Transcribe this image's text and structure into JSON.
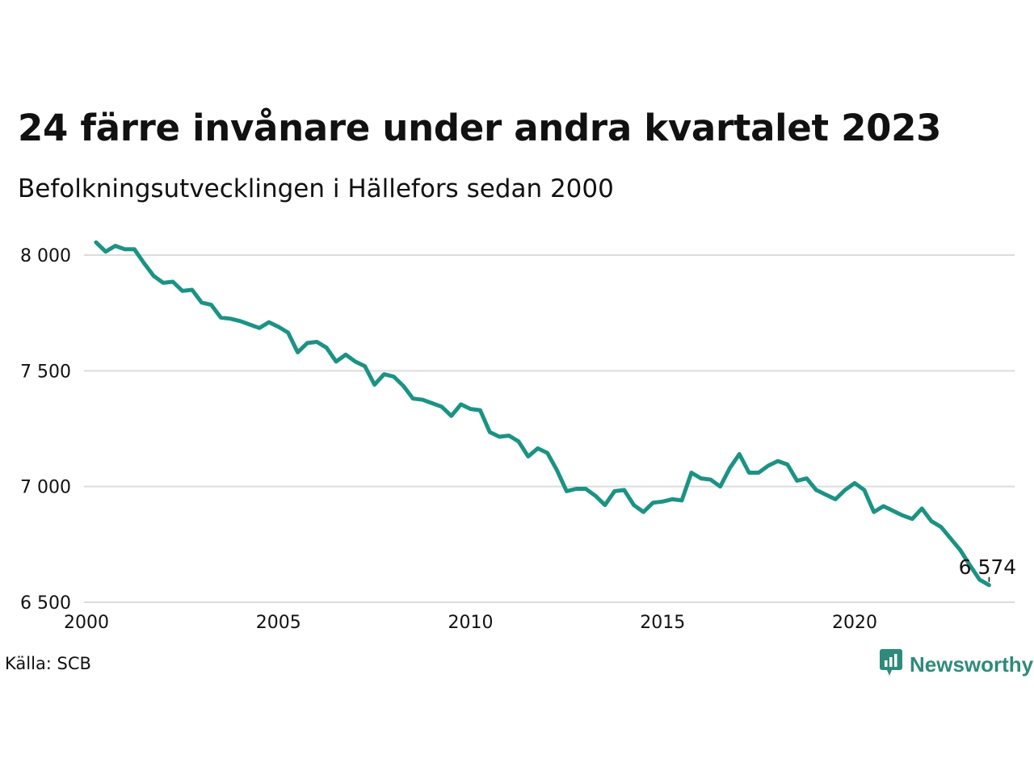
{
  "header": {
    "title": "24 färre invånare under andra kvartalet 2023",
    "subtitle": "Befolkningsutvecklingen i Hällefors sedan 2000"
  },
  "footer": {
    "source": "Källa: SCB",
    "brand": "Newsworthy",
    "brand_icon": "newsworthy-logo-icon"
  },
  "colors": {
    "line": "#1b9384",
    "grid": "#dcdcdc",
    "brand": "#2e8a7c"
  },
  "chart_data": {
    "type": "line",
    "title": "24 färre invånare under andra kvartalet 2023",
    "subtitle": "Befolkningsutvecklingen i Hällefors sedan 2000",
    "xlabel": "",
    "ylabel": "",
    "x_ticks": [
      2000,
      2005,
      2010,
      2015,
      2020
    ],
    "x_tick_labels": [
      "2000",
      "2005",
      "2010",
      "2015",
      "2020"
    ],
    "y_ticks": [
      6500,
      7000,
      7500,
      8000
    ],
    "y_tick_labels": [
      "6 500",
      "7 000",
      "7 500",
      "8 000"
    ],
    "xlim": [
      2000,
      2024
    ],
    "ylim": [
      6500,
      8100
    ],
    "grid": true,
    "end_label": "6 574",
    "series": [
      {
        "values": [
          {
            "x": 2000.25,
            "y": 8055
          },
          {
            "x": 2000.5,
            "y": 8015
          },
          {
            "x": 2000.75,
            "y": 8040
          },
          {
            "x": 2001.0,
            "y": 8025
          },
          {
            "x": 2001.25,
            "y": 8025
          },
          {
            "x": 2001.5,
            "y": 7965
          },
          {
            "x": 2001.75,
            "y": 7910
          },
          {
            "x": 2002.0,
            "y": 7880
          },
          {
            "x": 2002.25,
            "y": 7885
          },
          {
            "x": 2002.5,
            "y": 7845
          },
          {
            "x": 2002.75,
            "y": 7850
          },
          {
            "x": 2003.0,
            "y": 7795
          },
          {
            "x": 2003.25,
            "y": 7785
          },
          {
            "x": 2003.5,
            "y": 7730
          },
          {
            "x": 2003.75,
            "y": 7725
          },
          {
            "x": 2004.0,
            "y": 7715
          },
          {
            "x": 2004.25,
            "y": 7700
          },
          {
            "x": 2004.5,
            "y": 7685
          },
          {
            "x": 2004.75,
            "y": 7710
          },
          {
            "x": 2005.0,
            "y": 7690
          },
          {
            "x": 2005.25,
            "y": 7665
          },
          {
            "x": 2005.5,
            "y": 7580
          },
          {
            "x": 2005.75,
            "y": 7620
          },
          {
            "x": 2006.0,
            "y": 7625
          },
          {
            "x": 2006.25,
            "y": 7600
          },
          {
            "x": 2006.5,
            "y": 7540
          },
          {
            "x": 2006.75,
            "y": 7570
          },
          {
            "x": 2007.0,
            "y": 7540
          },
          {
            "x": 2007.25,
            "y": 7520
          },
          {
            "x": 2007.5,
            "y": 7440
          },
          {
            "x": 2007.75,
            "y": 7485
          },
          {
            "x": 2008.0,
            "y": 7475
          },
          {
            "x": 2008.25,
            "y": 7435
          },
          {
            "x": 2008.5,
            "y": 7380
          },
          {
            "x": 2008.75,
            "y": 7375
          },
          {
            "x": 2009.0,
            "y": 7360
          },
          {
            "x": 2009.25,
            "y": 7345
          },
          {
            "x": 2009.5,
            "y": 7305
          },
          {
            "x": 2009.75,
            "y": 7355
          },
          {
            "x": 2010.0,
            "y": 7335
          },
          {
            "x": 2010.25,
            "y": 7330
          },
          {
            "x": 2010.5,
            "y": 7235
          },
          {
            "x": 2010.75,
            "y": 7215
          },
          {
            "x": 2011.0,
            "y": 7220
          },
          {
            "x": 2011.25,
            "y": 7195
          },
          {
            "x": 2011.5,
            "y": 7130
          },
          {
            "x": 2011.75,
            "y": 7165
          },
          {
            "x": 2012.0,
            "y": 7145
          },
          {
            "x": 2012.25,
            "y": 7070
          },
          {
            "x": 2012.5,
            "y": 6980
          },
          {
            "x": 2012.75,
            "y": 6990
          },
          {
            "x": 2013.0,
            "y": 6990
          },
          {
            "x": 2013.25,
            "y": 6960
          },
          {
            "x": 2013.5,
            "y": 6920
          },
          {
            "x": 2013.75,
            "y": 6980
          },
          {
            "x": 2014.0,
            "y": 6985
          },
          {
            "x": 2014.25,
            "y": 6920
          },
          {
            "x": 2014.5,
            "y": 6890
          },
          {
            "x": 2014.75,
            "y": 6930
          },
          {
            "x": 2015.0,
            "y": 6935
          },
          {
            "x": 2015.25,
            "y": 6945
          },
          {
            "x": 2015.5,
            "y": 6940
          },
          {
            "x": 2015.75,
            "y": 7060
          },
          {
            "x": 2016.0,
            "y": 7035
          },
          {
            "x": 2016.25,
            "y": 7030
          },
          {
            "x": 2016.5,
            "y": 7000
          },
          {
            "x": 2016.75,
            "y": 7080
          },
          {
            "x": 2017.0,
            "y": 7140
          },
          {
            "x": 2017.25,
            "y": 7060
          },
          {
            "x": 2017.5,
            "y": 7060
          },
          {
            "x": 2017.75,
            "y": 7090
          },
          {
            "x": 2018.0,
            "y": 7110
          },
          {
            "x": 2018.25,
            "y": 7095
          },
          {
            "x": 2018.5,
            "y": 7025
          },
          {
            "x": 2018.75,
            "y": 7035
          },
          {
            "x": 2019.0,
            "y": 6985
          },
          {
            "x": 2019.25,
            "y": 6965
          },
          {
            "x": 2019.5,
            "y": 6945
          },
          {
            "x": 2019.75,
            "y": 6985
          },
          {
            "x": 2020.0,
            "y": 7015
          },
          {
            "x": 2020.25,
            "y": 6985
          },
          {
            "x": 2020.5,
            "y": 6890
          },
          {
            "x": 2020.75,
            "y": 6915
          },
          {
            "x": 2021.0,
            "y": 6895
          },
          {
            "x": 2021.25,
            "y": 6875
          },
          {
            "x": 2021.5,
            "y": 6860
          },
          {
            "x": 2021.75,
            "y": 6905
          },
          {
            "x": 2022.0,
            "y": 6850
          },
          {
            "x": 2022.25,
            "y": 6825
          },
          {
            "x": 2022.5,
            "y": 6775
          },
          {
            "x": 2022.75,
            "y": 6725
          },
          {
            "x": 2023.0,
            "y": 6660
          },
          {
            "x": 2023.25,
            "y": 6598
          },
          {
            "x": 2023.5,
            "y": 6574
          }
        ]
      }
    ]
  }
}
